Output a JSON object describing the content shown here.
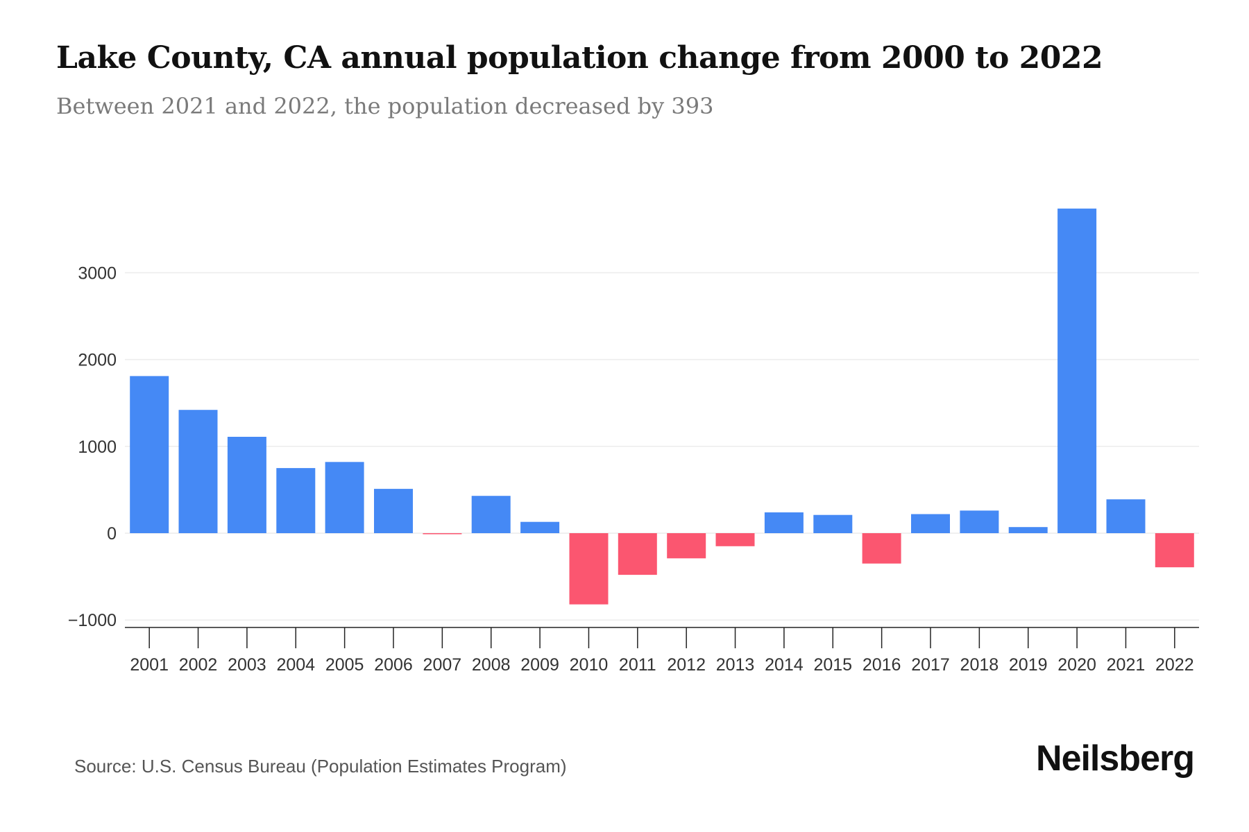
{
  "header": {
    "title": "Lake County, CA annual population change from 2000 to 2022",
    "subtitle": "Between 2021 and 2022, the population decreased by 393"
  },
  "footer": {
    "source": "Source: U.S. Census Bureau (Population Estimates Program)",
    "logo": "Neilsberg"
  },
  "colors": {
    "positive": "#4589f5",
    "negative": "#fb5670",
    "grid": "#ececec",
    "axis": "#222222",
    "tick_label": "#333333"
  },
  "chart_data": {
    "type": "bar",
    "title": "Lake County, CA annual population change from 2000 to 2022",
    "subtitle": "Between 2021 and 2022, the population decreased by 393",
    "xlabel": "",
    "ylabel": "",
    "categories": [
      "2001",
      "2002",
      "2003",
      "2004",
      "2005",
      "2006",
      "2007",
      "2008",
      "2009",
      "2010",
      "2011",
      "2012",
      "2013",
      "2014",
      "2015",
      "2016",
      "2017",
      "2018",
      "2019",
      "2020",
      "2021",
      "2022"
    ],
    "values": [
      1810,
      1420,
      1110,
      750,
      820,
      510,
      -5,
      430,
      130,
      -820,
      -480,
      -290,
      -150,
      240,
      210,
      -350,
      220,
      260,
      70,
      3740,
      390,
      -393
    ],
    "ylim": [
      -1000,
      3800
    ],
    "yticks": [
      -1000,
      0,
      1000,
      2000,
      3000
    ],
    "ytick_labels": [
      "−1000",
      "0",
      "1000",
      "2000",
      "3000"
    ],
    "grid": true
  }
}
